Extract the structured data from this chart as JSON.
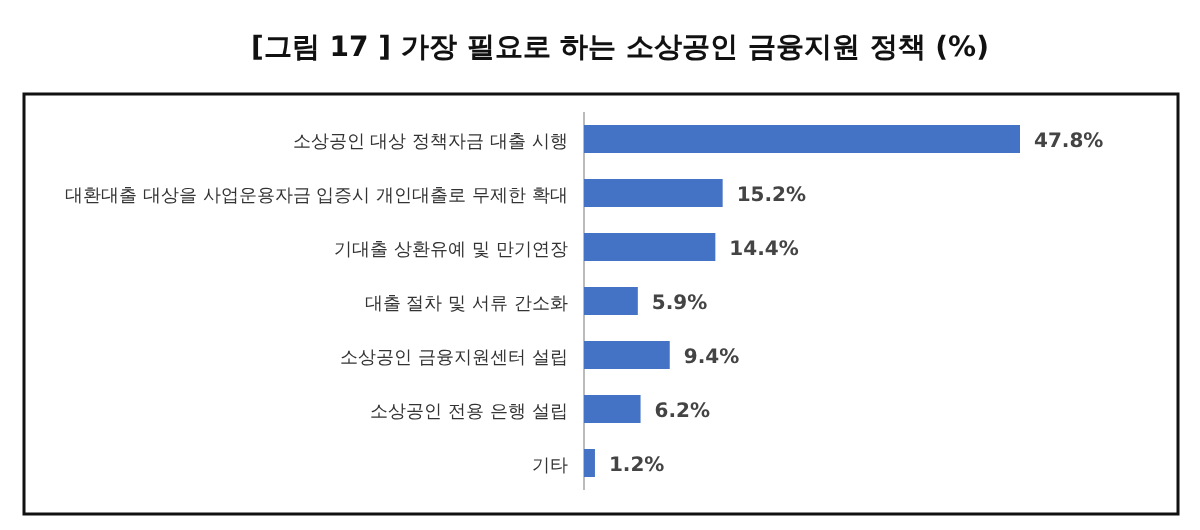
{
  "chart_data": {
    "type": "bar",
    "orientation": "horizontal",
    "title": "[그림 17 ] 가장 필요로 하는 소상공인 금융지원 정책 (%)",
    "categories": [
      "소상공인 대상 정책자금 대출 시행",
      "대환대출 대상을 사업운용자금 입증시 개인대출로 무제한 확대",
      "기대출 상환유예 및 만기연장",
      "대출 절차 및 서류 간소화",
      "소상공인 금융지원센터 설립",
      "소상공인 전용 은행 설립",
      "기타"
    ],
    "values": [
      47.8,
      15.2,
      14.4,
      5.9,
      9.4,
      6.2,
      1.2
    ],
    "value_labels": [
      "47.8%",
      "15.2%",
      "14.4%",
      "5.9%",
      "9.4%",
      "6.2%",
      "1.2%"
    ],
    "color": "#4472c4"
  }
}
